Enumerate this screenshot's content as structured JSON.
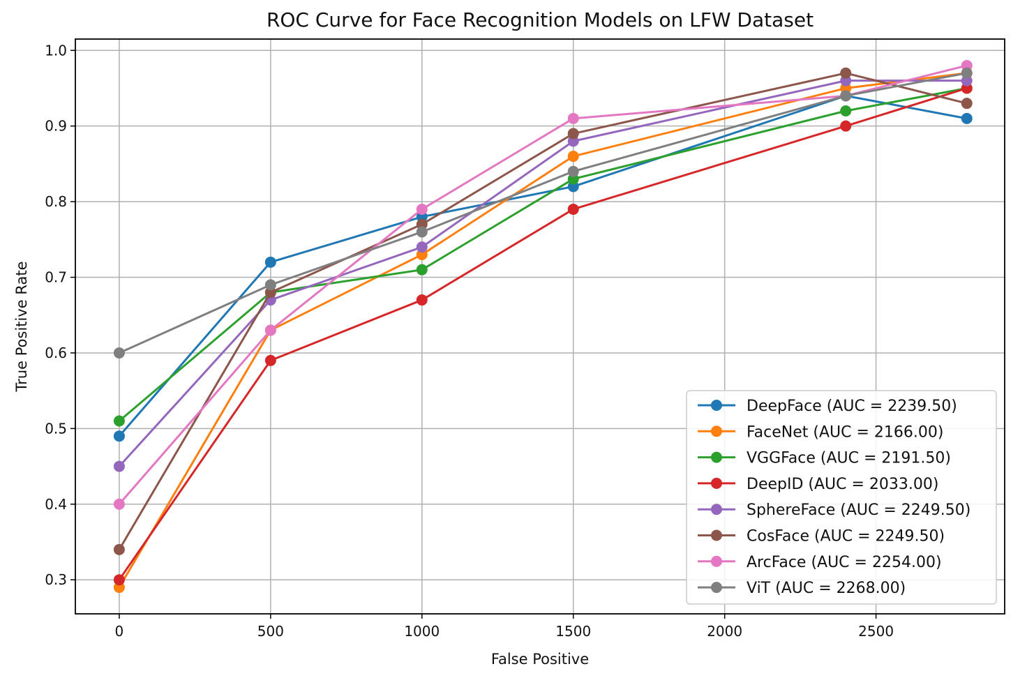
{
  "chart_data": {
    "type": "line",
    "title": "ROC Curve for Face Recognition Models on LFW Dataset",
    "xlabel": "False Positive",
    "ylabel": "True Positive Rate",
    "xlim": [
      -145,
      2925
    ],
    "ylim": [
      0.255,
      1.015
    ],
    "xticks": [
      0,
      500,
      1000,
      1500,
      2000,
      2500
    ],
    "xtick_labels": [
      "0",
      "500",
      "1000",
      "1500",
      "2000",
      "2500"
    ],
    "yticks": [
      0.3,
      0.4,
      0.5,
      0.6,
      0.7,
      0.8,
      0.9,
      1.0
    ],
    "ytick_labels": [
      "0.3",
      "0.4",
      "0.5",
      "0.6",
      "0.7",
      "0.8",
      "0.9",
      "1.0"
    ],
    "grid": true,
    "legend_position": "lower right",
    "x": [
      0,
      500,
      1000,
      1500,
      2400,
      2800
    ],
    "series": [
      {
        "name": "DeepFace (AUC = 2239.50)",
        "color": "#1f77b4",
        "values": [
          0.49,
          0.72,
          0.78,
          0.82,
          0.94,
          0.91
        ]
      },
      {
        "name": "FaceNet (AUC = 2166.00)",
        "color": "#ff7f0e",
        "values": [
          0.29,
          0.63,
          0.73,
          0.86,
          0.95,
          0.97
        ]
      },
      {
        "name": "VGGFace (AUC = 2191.50)",
        "color": "#2ca02c",
        "values": [
          0.51,
          0.68,
          0.71,
          0.83,
          0.92,
          0.95
        ]
      },
      {
        "name": "DeepID (AUC = 2033.00)",
        "color": "#d62728",
        "values": [
          0.3,
          0.59,
          0.67,
          0.79,
          0.9,
          0.95
        ]
      },
      {
        "name": "SphereFace (AUC = 2249.50)",
        "color": "#9467bd",
        "values": [
          0.45,
          0.67,
          0.74,
          0.88,
          0.96,
          0.96
        ]
      },
      {
        "name": "CosFace (AUC = 2249.50)",
        "color": "#8c564b",
        "values": [
          0.34,
          0.68,
          0.77,
          0.89,
          0.97,
          0.93
        ]
      },
      {
        "name": "ArcFace (AUC = 2254.00)",
        "color": "#e377c2",
        "values": [
          0.4,
          0.63,
          0.79,
          0.91,
          0.94,
          0.98
        ]
      },
      {
        "name": "ViT (AUC = 2268.00)",
        "color": "#7f7f7f",
        "values": [
          0.6,
          0.69,
          0.76,
          0.84,
          0.94,
          0.97
        ]
      }
    ]
  }
}
